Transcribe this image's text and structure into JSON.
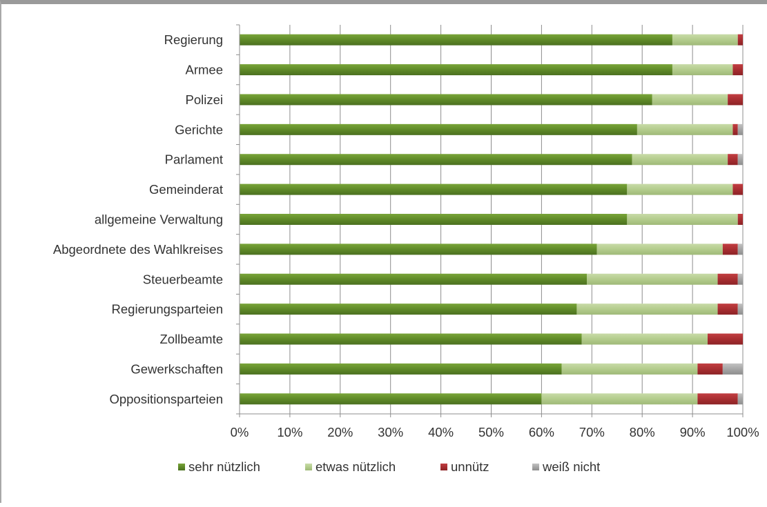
{
  "chart_data": {
    "type": "bar",
    "orientation": "horizontal",
    "stacked": "percent",
    "categories": [
      "Regierung",
      "Armee",
      "Polizei",
      "Gerichte",
      "Parlament",
      "Gemeinderat",
      "allgemeine Verwaltung",
      "Abgeordnete des Wahlkreises",
      "Steuerbeamte",
      "Regierungsparteien",
      "Zollbeamte",
      "Gewerkschaften",
      "Oppositionsparteien"
    ],
    "series": [
      {
        "name": "sehr nützlich",
        "color": "#5f8a28",
        "values": [
          86,
          86,
          82,
          79,
          78,
          77,
          77,
          71,
          69,
          67,
          68,
          64,
          60
        ]
      },
      {
        "name": "etwas nützlich",
        "color": "#b3cc8c",
        "values": [
          13,
          12,
          15,
          19,
          19,
          21,
          22,
          25,
          26,
          28,
          25,
          27,
          31
        ]
      },
      {
        "name": "unnütz",
        "color": "#a82e31",
        "values": [
          1,
          2,
          3,
          1,
          2,
          2,
          1,
          3,
          4,
          4,
          7,
          5,
          8
        ]
      },
      {
        "name": "weiß nicht",
        "color": "#a6a6a6",
        "values": [
          0,
          0,
          0,
          1,
          1,
          0,
          0,
          1,
          1,
          1,
          0,
          4,
          1
        ]
      }
    ],
    "xticks": [
      "0%",
      "10%",
      "20%",
      "30%",
      "40%",
      "50%",
      "60%",
      "70%",
      "80%",
      "90%",
      "100%"
    ],
    "xlim": [
      0,
      100
    ],
    "grid": true,
    "legend": "bottom",
    "title": "",
    "xlabel": "",
    "ylabel": ""
  }
}
